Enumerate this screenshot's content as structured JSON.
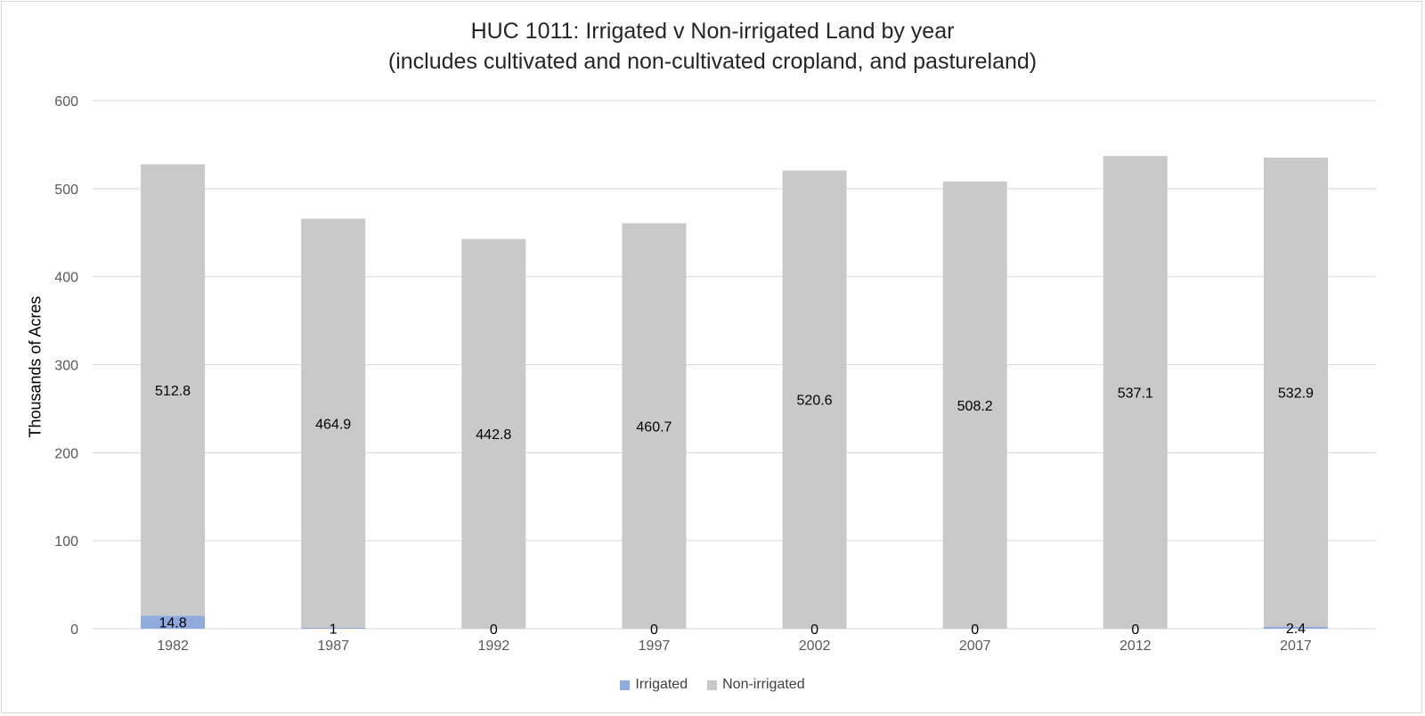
{
  "chart_data": {
    "type": "bar",
    "stacked": true,
    "title": "HUC 1011: Irrigated v Non-irrigated Land by year",
    "subtitle": "(includes cultivated and non-cultivated cropland, and pastureland)",
    "xlabel": "",
    "ylabel": "Thousands of Acres",
    "ylim": [
      0,
      600
    ],
    "yticks": [
      0,
      100,
      200,
      300,
      400,
      500,
      600
    ],
    "grid": true,
    "legend_position": "bottom",
    "categories": [
      "1982",
      "1987",
      "1992",
      "1997",
      "2002",
      "2007",
      "2012",
      "2017"
    ],
    "series": [
      {
        "name": "Irrigated",
        "color": "#8faadc",
        "values": [
          14.8,
          1,
          0,
          0,
          0,
          0,
          0,
          2.4
        ],
        "labels": [
          "14.8",
          "1",
          "0",
          "0",
          "0",
          "0",
          "0",
          "2.4"
        ]
      },
      {
        "name": "Non-irrigated",
        "color": "#c9c9c9",
        "values": [
          512.8,
          464.9,
          442.8,
          460.7,
          520.6,
          508.2,
          537.1,
          532.9
        ],
        "labels": [
          "512.8",
          "464.9",
          "442.8",
          "460.7",
          "520.6",
          "508.2",
          "537.1",
          "532.9"
        ]
      }
    ]
  }
}
